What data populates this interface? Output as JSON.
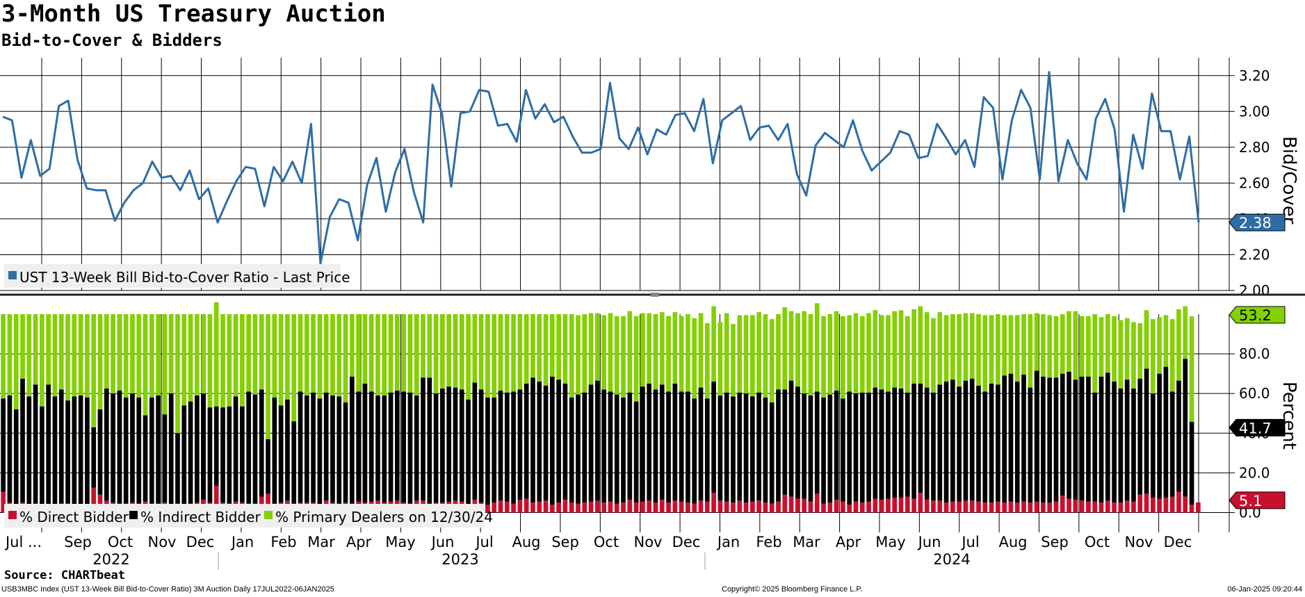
{
  "title": "3-Month US Treasury Auction",
  "subtitle": "Bid-to-Cover & Bidders",
  "source": "Source: CHARTbeat",
  "footer": {
    "left": "USB3MBC Index (UST 13-Week Bill Bid-to-Cover Ratio) 3M Auction  Daily 17JUL2022-06JAN2025",
    "center": "Copyright© 2025 Bloomberg Finance L.P.",
    "right": "06-Jan-2025 09:20:44"
  },
  "colors": {
    "line": "#2e6da4",
    "direct": "#c8102e",
    "indirect": "#000000",
    "primary": "#84d000",
    "grid": "#000000"
  },
  "chart_data": [
    {
      "type": "line",
      "ylabel": "Bid/Cover",
      "ylim": [
        2.0,
        3.3
      ],
      "yticks": [
        "3.20",
        "3.00",
        "2.80",
        "2.60",
        "2.40",
        "2.20",
        "2.00"
      ],
      "grid": true,
      "legend": [
        "UST 13-Week Bill Bid-to-Cover Ratio - Last Price"
      ],
      "last_value_label": "2.38",
      "series": [
        {
          "name": "UST 13-Week Bill Bid-to-Cover Ratio - Last Price",
          "values": [
            2.97,
            2.95,
            2.63,
            2.84,
            2.64,
            2.68,
            3.03,
            3.06,
            2.73,
            2.57,
            2.56,
            2.56,
            2.39,
            2.49,
            2.56,
            2.6,
            2.72,
            2.63,
            2.64,
            2.56,
            2.67,
            2.51,
            2.57,
            2.38,
            2.5,
            2.61,
            2.69,
            2.68,
            2.47,
            2.69,
            2.61,
            2.72,
            2.6,
            2.93,
            2.15,
            2.41,
            2.51,
            2.49,
            2.28,
            2.59,
            2.74,
            2.44,
            2.66,
            2.79,
            2.55,
            2.38,
            3.15,
            2.99,
            2.58,
            2.99,
            3.0,
            3.12,
            3.11,
            2.92,
            2.93,
            2.83,
            3.12,
            2.96,
            3.04,
            2.94,
            2.97,
            2.86,
            2.77,
            2.77,
            2.79,
            3.16,
            2.85,
            2.79,
            2.91,
            2.76,
            2.9,
            2.87,
            2.98,
            2.99,
            2.89,
            3.07,
            2.71,
            2.95,
            2.99,
            3.03,
            2.84,
            2.91,
            2.92,
            2.84,
            2.93,
            2.65,
            2.53,
            2.81,
            2.88,
            2.84,
            2.8,
            2.95,
            2.78,
            2.67,
            2.72,
            2.77,
            2.89,
            2.87,
            2.74,
            2.75,
            2.93,
            2.85,
            2.76,
            2.84,
            2.69,
            3.08,
            3.02,
            2.62,
            2.95,
            3.12,
            3.02,
            2.62,
            3.22,
            2.61,
            2.84,
            2.71,
            2.62,
            2.96,
            3.07,
            2.9,
            2.44,
            2.87,
            2.68,
            3.1,
            2.89,
            2.89,
            2.62,
            2.86,
            2.38
          ]
        }
      ]
    },
    {
      "type": "bar",
      "stacked": true,
      "ylabel": "Percent",
      "ylim": [
        -10,
        100
      ],
      "yticks": [
        "80.0",
        "60.0",
        "40.0",
        "20.0",
        "0.0"
      ],
      "grid": true,
      "legend": [
        "% Direct Bidder",
        "% Indirect Bidder",
        "% Primary Dealers on 12/30/24"
      ],
      "last_value_labels": [
        "53.2",
        "41.7",
        "5.1"
      ],
      "series": [
        {
          "name": "% Direct Bidder",
          "values": [
            10.5,
            5,
            3.5,
            5,
            3.5,
            4.5,
            3.5,
            4,
            3.5,
            4.5,
            4.5,
            3.5,
            4,
            3.5,
            12.5,
            9,
            6,
            5,
            4.5,
            4.5,
            5,
            4.5,
            5.5,
            4.5,
            4.5,
            5,
            3.5,
            4.5,
            3.5,
            4.5,
            5,
            6.5,
            5,
            13.5,
            5,
            4.5,
            5.5,
            5,
            4.5,
            4.5,
            8,
            9.5,
            4.5,
            5,
            6,
            4.5,
            5,
            5,
            5,
            4,
            6,
            5,
            4.5,
            5,
            4.5,
            5.5,
            5,
            5.5,
            6,
            5,
            5.5,
            6,
            5,
            4.5,
            6,
            6,
            4.5,
            5,
            5,
            5.5,
            6,
            5.5,
            4,
            6.5,
            5,
            4,
            5,
            6,
            5.5,
            4.5,
            6.5,
            7,
            5,
            5.5,
            6,
            4,
            5,
            6.5,
            5,
            4.5,
            5,
            5.5,
            6,
            5,
            5.5,
            4.5,
            5,
            6.5,
            5,
            5.5,
            6,
            5,
            6.5,
            5,
            6,
            5.5,
            5,
            4.5,
            6,
            5.5,
            10,
            6,
            5.5,
            5,
            6,
            5,
            5.5,
            6,
            5,
            4.5,
            5.5,
            9,
            8,
            7,
            7,
            5.5,
            9.5,
            4.5,
            5,
            6.5,
            5.5,
            4,
            5.5,
            5,
            5.5,
            7,
            6.5,
            7,
            7.5,
            7.5,
            8,
            7,
            10,
            6.5,
            6,
            6,
            5,
            5.5,
            5.5,
            6,
            6,
            5.5,
            5,
            5,
            5.5,
            5,
            5.5,
            5,
            5.5,
            5,
            5.5,
            5,
            5,
            5.5,
            8.5,
            7,
            6.5,
            6,
            5.5,
            5.5,
            5,
            6,
            5,
            5,
            6,
            5.5,
            9,
            9.5,
            7.5,
            7,
            7.5,
            8,
            10.5,
            8,
            4,
            5.1
          ]
        },
        {
          "name": "% Indirect Bidder",
          "values": [
            47,
            54,
            48.5,
            62.5,
            55,
            60,
            50,
            60.5,
            55,
            57.5,
            52,
            55,
            55,
            54.5,
            30.5,
            43,
            56.5,
            55,
            57,
            53.5,
            55,
            53.5,
            43.5,
            53.5,
            54.5,
            44.5,
            56.5,
            35.5,
            50.5,
            51.5,
            54,
            53.5,
            48,
            40,
            48,
            49,
            53,
            48.5,
            56.5,
            55,
            54,
            27.5,
            53.5,
            49,
            51,
            41.5,
            56,
            54,
            55.5,
            53.5,
            54.5,
            54,
            54,
            50.5,
            64,
            55.5,
            60,
            55.5,
            53,
            54,
            55,
            55.5,
            56,
            56,
            53,
            62,
            63.5,
            55,
            57.5,
            58,
            57,
            56.5,
            53,
            59,
            57,
            54,
            53,
            55.5,
            55,
            56.5,
            55.5,
            58,
            63,
            60.5,
            58,
            64.5,
            62,
            58.5,
            53,
            55,
            55.5,
            59,
            60.5,
            57,
            55.5,
            55,
            53,
            54,
            51,
            58,
            59,
            57,
            58,
            56,
            59,
            55.5,
            56,
            53,
            57,
            52,
            56,
            53,
            55,
            53.5,
            54.5,
            55,
            53,
            54.5,
            53,
            51,
            56.5,
            53,
            58.5,
            56.5,
            53,
            53.5,
            51.5,
            53.5,
            54.5,
            55,
            52,
            57,
            54.5,
            55.5,
            55,
            56,
            55.5,
            54,
            55.5,
            55,
            52.5,
            58,
            55,
            56.5,
            54.5,
            58.5,
            61,
            61.5,
            58,
            60.5,
            61.5,
            58.5,
            56,
            60,
            59,
            64,
            64.5,
            61,
            64,
            58,
            66,
            63.5,
            63,
            62.5,
            61.5,
            64,
            60.5,
            62.5,
            63,
            55,
            63.5,
            64.5,
            61,
            57.5,
            61,
            57,
            58.5,
            63,
            52.5,
            63,
            66,
            53,
            56,
            69.5,
            41.7
          ]
        },
        {
          "name": "% Primary Dealers on 12/30/24",
          "values": [
            42.5,
            41,
            48,
            32.5,
            41.5,
            35.5,
            46.5,
            35.5,
            41.5,
            38,
            43.5,
            41.5,
            41,
            42,
            57,
            48,
            37.5,
            40,
            38.5,
            42,
            40,
            42,
            51,
            42,
            41,
            50.5,
            40,
            60,
            46,
            44,
            41,
            40,
            47,
            52.5,
            47,
            46.5,
            41.5,
            46.5,
            39,
            40.5,
            38,
            63,
            42,
            46,
            43,
            54,
            39,
            41,
            39.5,
            42.5,
            39.5,
            41,
            41.5,
            44.5,
            31.5,
            39,
            35,
            39,
            41,
            41,
            39.5,
            38.5,
            39,
            39.5,
            41,
            32,
            32,
            40,
            37.5,
            36.5,
            37,
            38,
            43,
            34.5,
            38,
            42,
            42,
            38.5,
            39.5,
            39,
            38,
            35,
            32,
            34,
            36,
            31.5,
            33,
            35,
            42,
            40,
            39.5,
            36,
            34,
            37.5,
            39.5,
            39.5,
            41,
            41,
            43,
            37,
            35.5,
            38,
            36.5,
            38,
            36,
            38,
            39,
            40.5,
            37.5,
            38,
            38,
            37,
            40,
            36.5,
            39,
            39.5,
            41,
            40.5,
            42,
            42,
            38,
            41.5,
            35,
            37,
            41.5,
            41,
            44.5,
            41,
            40.5,
            40,
            41.5,
            38.5,
            40.5,
            38.5,
            40,
            39,
            37.5,
            38.5,
            38.5,
            39.5,
            38.5,
            37.5,
            39,
            38,
            37.5,
            36.5,
            33.5,
            33,
            36.5,
            34,
            33,
            36,
            38.5,
            34.5,
            35.5,
            30.5,
            29.5,
            33.5,
            30.5,
            37,
            29,
            31.5,
            31.5,
            31,
            30,
            30.5,
            34.5,
            30.5,
            30.5,
            39.5,
            30,
            29.5,
            33,
            34.5,
            31,
            33.5,
            28,
            29.5,
            37.5,
            28.5,
            26,
            36.5,
            36,
            26.5,
            53.2
          ]
        }
      ]
    }
  ],
  "x_axis": {
    "months": [
      "Jul ...",
      "Sep",
      "Oct",
      "Nov",
      "Dec",
      "Jan",
      "Feb",
      "Mar",
      "Apr",
      "May",
      "Jun",
      "Jul",
      "Aug",
      "Sep",
      "Oct",
      "Nov",
      "Dec",
      "Jan",
      "Feb",
      "Mar",
      "Apr",
      "May",
      "Jun",
      "Jul",
      "Aug",
      "Sep",
      "Oct",
      "Nov",
      "Dec"
    ],
    "years": [
      "2022",
      "2023",
      "2024"
    ]
  }
}
